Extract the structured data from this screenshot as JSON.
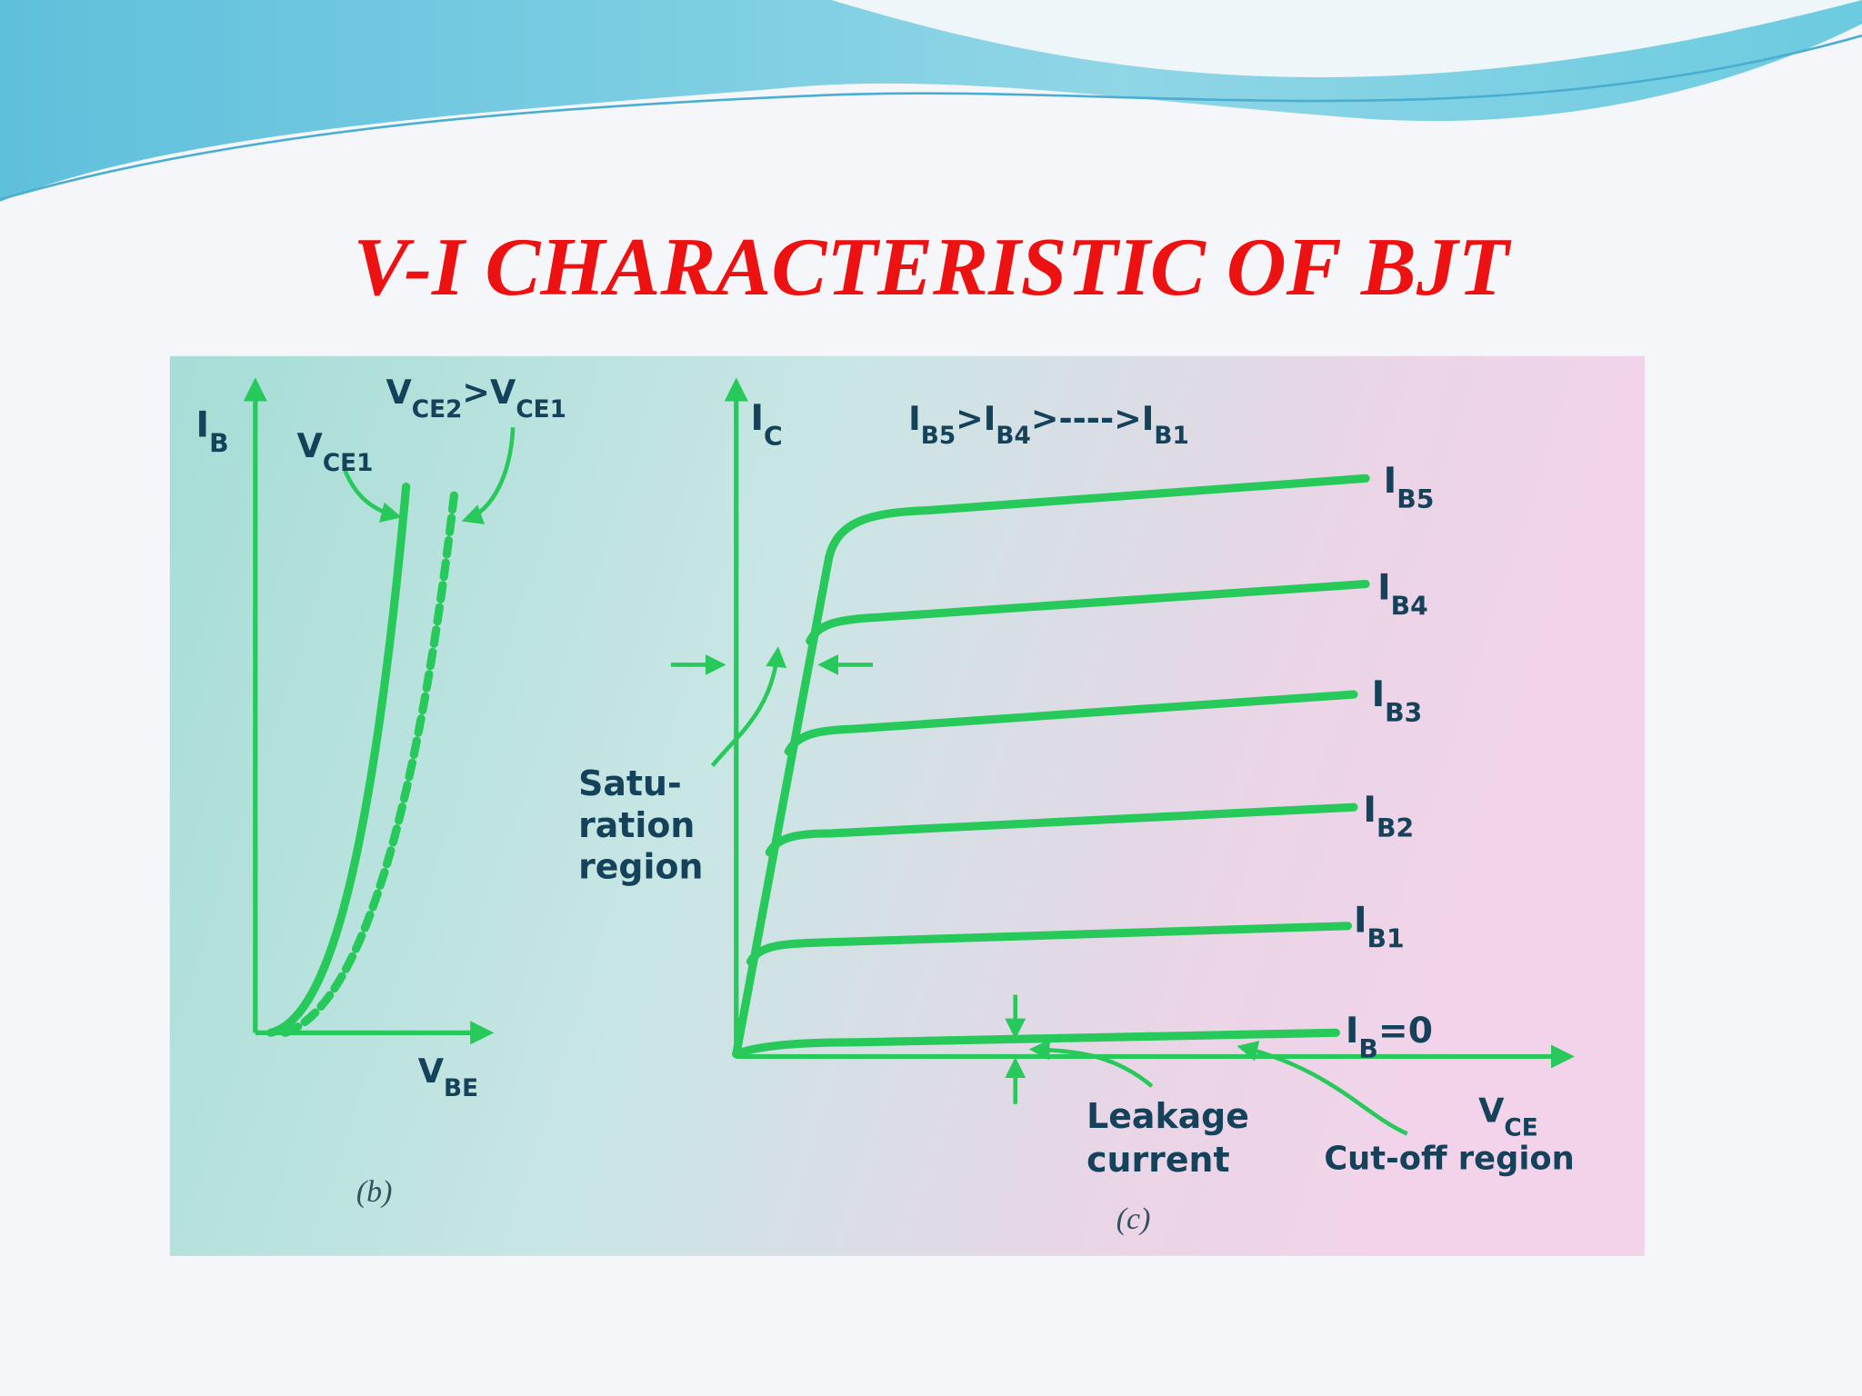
{
  "title": "V-I CHARACTERISTIC OF BJT",
  "panel_b": {
    "y_axis": [
      {
        "t": "I",
        "s": "B"
      }
    ],
    "x_axis": [
      {
        "t": "V",
        "s": "BE"
      }
    ],
    "curve_solid": [
      {
        "t": "V",
        "s": "CE1"
      }
    ],
    "curve_dashed": [
      {
        "t": "V",
        "s": "CE2"
      },
      {
        "t": ">V",
        "s": "CE1"
      }
    ],
    "caption": "(b)"
  },
  "panel_c": {
    "y_axis": [
      {
        "t": "I",
        "s": "C"
      }
    ],
    "order": [
      {
        "t": "I",
        "s": "B5"
      },
      {
        "t": ">I",
        "s": "B4"
      },
      {
        "t": ">---->I",
        "s": "B1"
      }
    ],
    "curves": [
      [
        {
          "t": "I",
          "s": "B5"
        }
      ],
      [
        {
          "t": "I",
          "s": "B4"
        }
      ],
      [
        {
          "t": "I",
          "s": "B3"
        }
      ],
      [
        {
          "t": "I",
          "s": "B2"
        }
      ],
      [
        {
          "t": "I",
          "s": "B1"
        }
      ],
      [
        {
          "t": "I",
          "s": "B"
        },
        {
          "t": "=0"
        }
      ]
    ],
    "saturation": [
      "Satu-",
      "ration",
      "region"
    ],
    "leakage": [
      "Leakage",
      "current"
    ],
    "x_axis": [
      {
        "t": "V",
        "s": "CE"
      }
    ],
    "cutoff": "Cut-off region",
    "caption": "(c)"
  }
}
